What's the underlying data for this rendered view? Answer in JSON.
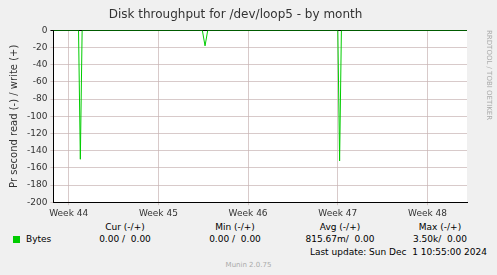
{
  "chart_data": {
    "type": "line",
    "title": "Disk throughput for /dev/loop5 - by month",
    "y_label": "Pr second read (-) / write (+)",
    "x": [
      43.83,
      44.11,
      44.13,
      44.15,
      45.49,
      45.52,
      45.55,
      47.0,
      47.02,
      47.04,
      48.44
    ],
    "series": [
      {
        "name": "Bytes",
        "color": "#00cc00",
        "values": [
          0,
          0,
          -150,
          0,
          0,
          -18,
          0,
          0,
          -152,
          0,
          0
        ]
      }
    ],
    "xlim": [
      43.83,
      48.44
    ],
    "xticks": [
      {
        "value": 44,
        "label": "Week 44"
      },
      {
        "value": 45,
        "label": "Week 45"
      },
      {
        "value": 46,
        "label": "Week 46"
      },
      {
        "value": 47,
        "label": "Week 47"
      },
      {
        "value": 48,
        "label": "Week 48"
      }
    ],
    "ylim": [
      -200,
      0
    ],
    "yticks": [
      -200,
      -180,
      -160,
      -140,
      -120,
      -100,
      -80,
      -60,
      -40,
      -20,
      0
    ],
    "grid": true,
    "legend_table": {
      "headers": [
        "Cur (-/+)",
        "Min (-/+)",
        "Avg (-/+)",
        "Max (-/+)"
      ],
      "rows": [
        {
          "name": "Bytes",
          "cells": [
            "0.00 /  0.00",
            "0.00 /  0.00",
            "815.67m/  0.00",
            "3.50k/  0.00"
          ]
        }
      ]
    },
    "last_update": "Last update: Sun Dec  1 10:55:00 2024",
    "footer": "Munin 2.0.75",
    "side_text": "RRDTOOL / TOBI OETIKER"
  }
}
